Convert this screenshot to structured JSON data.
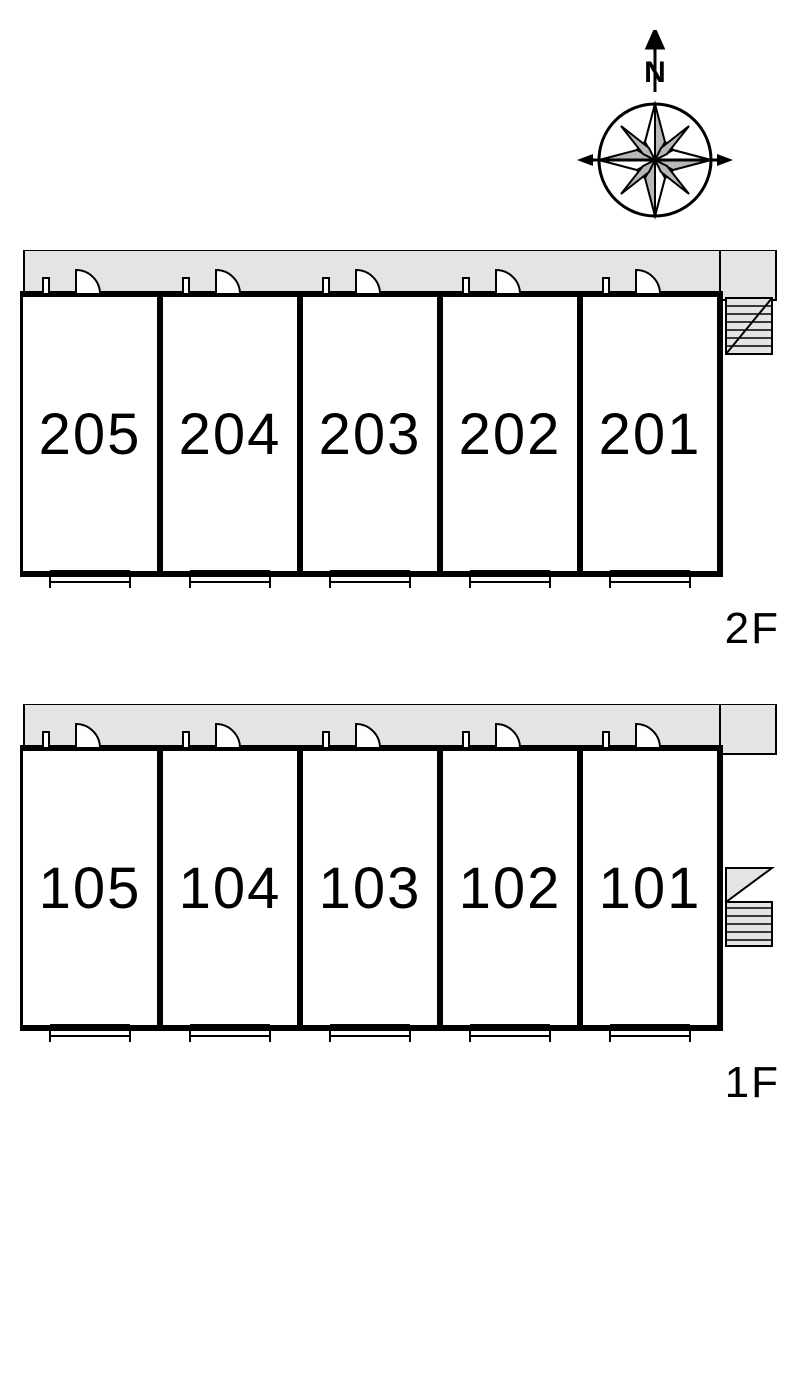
{
  "compass": {
    "label": "N",
    "label_fontsize": 30,
    "stroke": "#000000",
    "gray_fill": "#b8b8b8",
    "white_fill": "#ffffff"
  },
  "layout": {
    "unit_width": 140,
    "unit_height": 280,
    "units_per_floor": 5,
    "corridor_height": 44,
    "stair_area_width": 60,
    "room_number_fontsize": 58,
    "room_number_color": "#000000",
    "floor_label_fontsize": 44,
    "floor_label_color": "#000000",
    "wall_stroke": "#000000",
    "wall_stroke_width": 6,
    "thin_stroke_width": 2,
    "corridor_fill": "#e4e4e4",
    "background": "#ffffff"
  },
  "floors": [
    {
      "label": "2F",
      "stair_variant": "upper",
      "units": [
        {
          "number": "205"
        },
        {
          "number": "204"
        },
        {
          "number": "203"
        },
        {
          "number": "202"
        },
        {
          "number": "201"
        }
      ]
    },
    {
      "label": "1F",
      "stair_variant": "lower",
      "units": [
        {
          "number": "105"
        },
        {
          "number": "104"
        },
        {
          "number": "103"
        },
        {
          "number": "102"
        },
        {
          "number": "101"
        }
      ]
    }
  ]
}
